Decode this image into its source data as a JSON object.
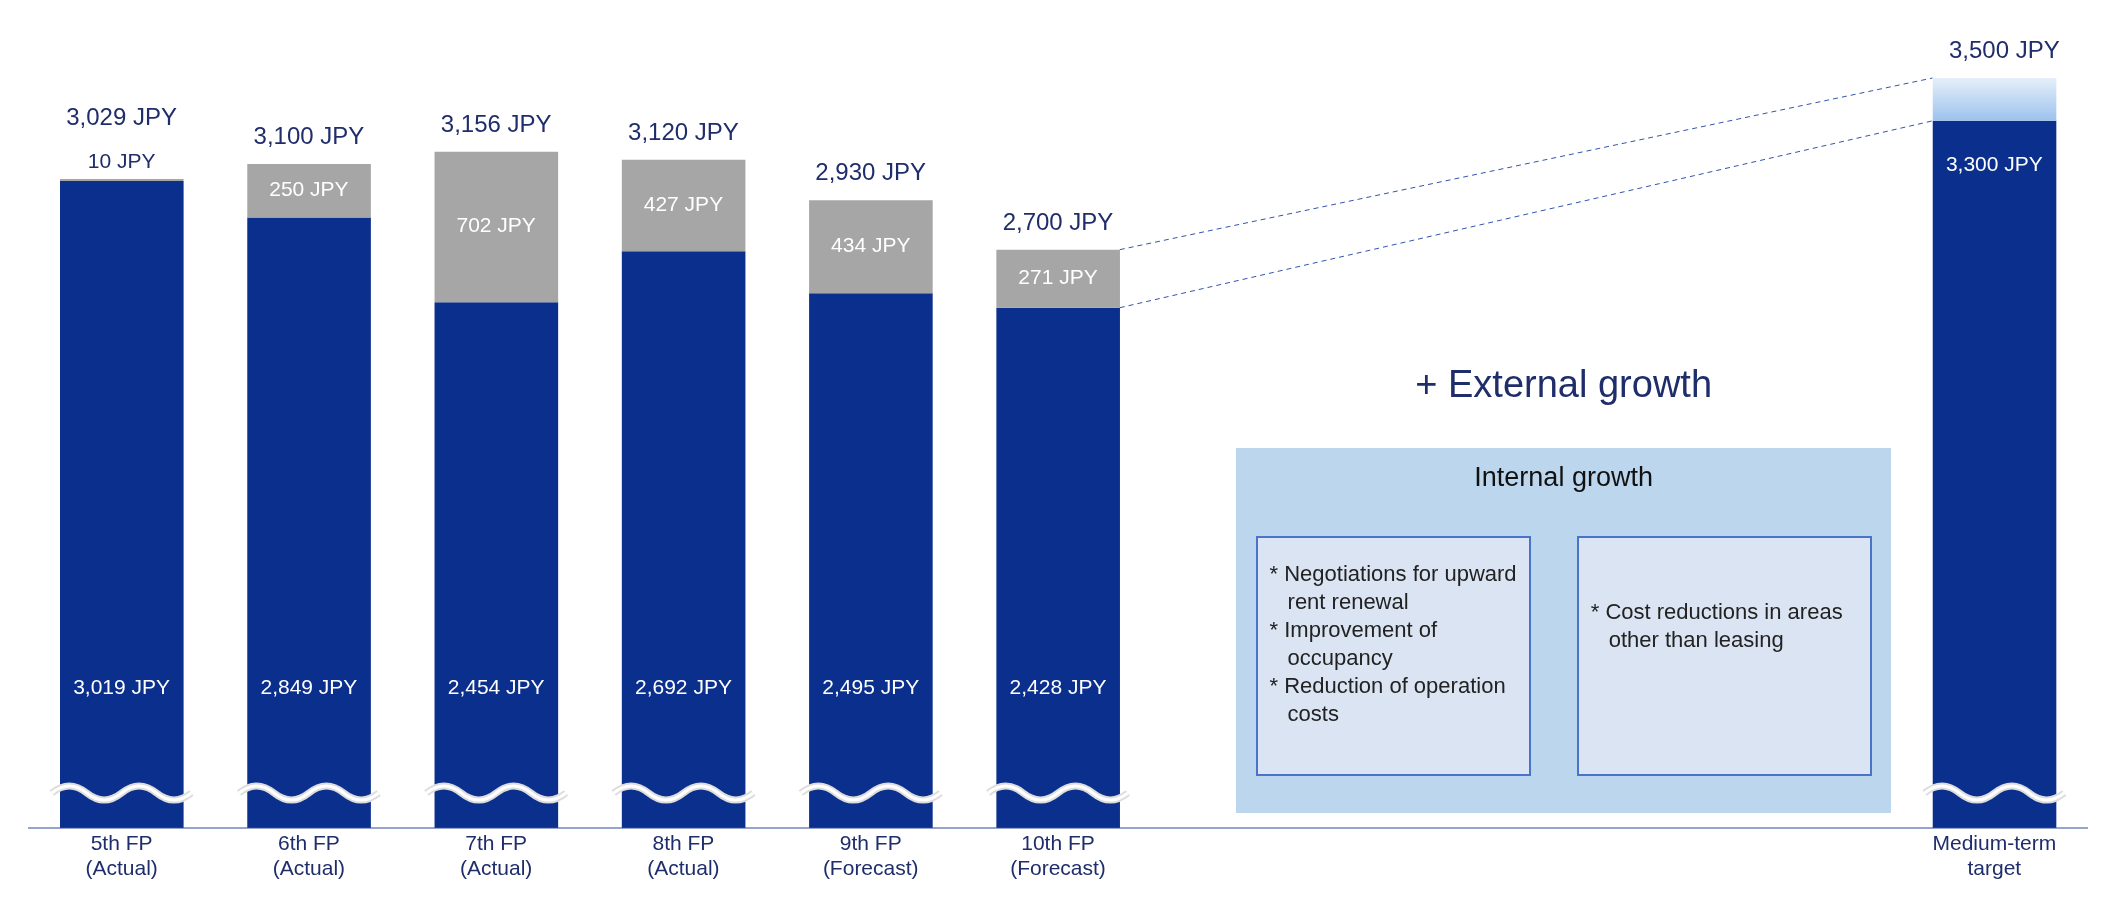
{
  "chart_data": {
    "type": "bar",
    "stacked": true,
    "tick_labels": "x",
    "categories": [
      "5th FP\n(Actual)",
      "6th FP\n(Actual)",
      "7th FP\n(Actual)",
      "8th FP\n(Actual)",
      "9th FP\n(Forecast)",
      "10th FP\n(Forecast)",
      null,
      null,
      null,
      null,
      "Medium-term\ntarget"
    ],
    "series": [
      {
        "color": "#0b2f8c",
        "values": [
          3019,
          2849,
          2454,
          2692,
          2495,
          2428,
          null,
          null,
          null,
          null,
          3300
        ],
        "value_labels": [
          "3,019 JPY",
          "2,849 JPY",
          "2,454 JPY",
          "2,692 JPY",
          "2,495 JPY",
          "2,428 JPY",
          null,
          null,
          null,
          null,
          "3,300 JPY"
        ]
      },
      {
        "color": "#a6a6a6",
        "values": [
          10,
          250,
          702,
          427,
          434,
          271,
          null,
          null,
          null,
          null,
          null
        ],
        "value_labels": [
          "10 JPY",
          "250 JPY",
          "702 JPY",
          "427 JPY",
          "434 JPY",
          "271 JPY",
          null,
          null,
          null,
          null,
          null
        ]
      },
      {
        "color": "#9cc2ee",
        "values": [
          null,
          null,
          null,
          null,
          null,
          null,
          null,
          null,
          null,
          null,
          200
        ]
      }
    ],
    "totals": [
      "3,029 JPY",
      "3,100 JPY",
      "3,156 JPY",
      "3,120 JPY",
      "2,930 JPY",
      "2,700 JPY",
      null,
      null,
      null,
      null,
      "3,500 JPY"
    ],
    "annotations": [
      "+ External growth",
      "Internal growth",
      "* Negotiations for upward rent renewal\n* Improvement of occupancy\n* Reduction of operation costs",
      "* Cost reductions in areas other than leasing"
    ]
  }
}
